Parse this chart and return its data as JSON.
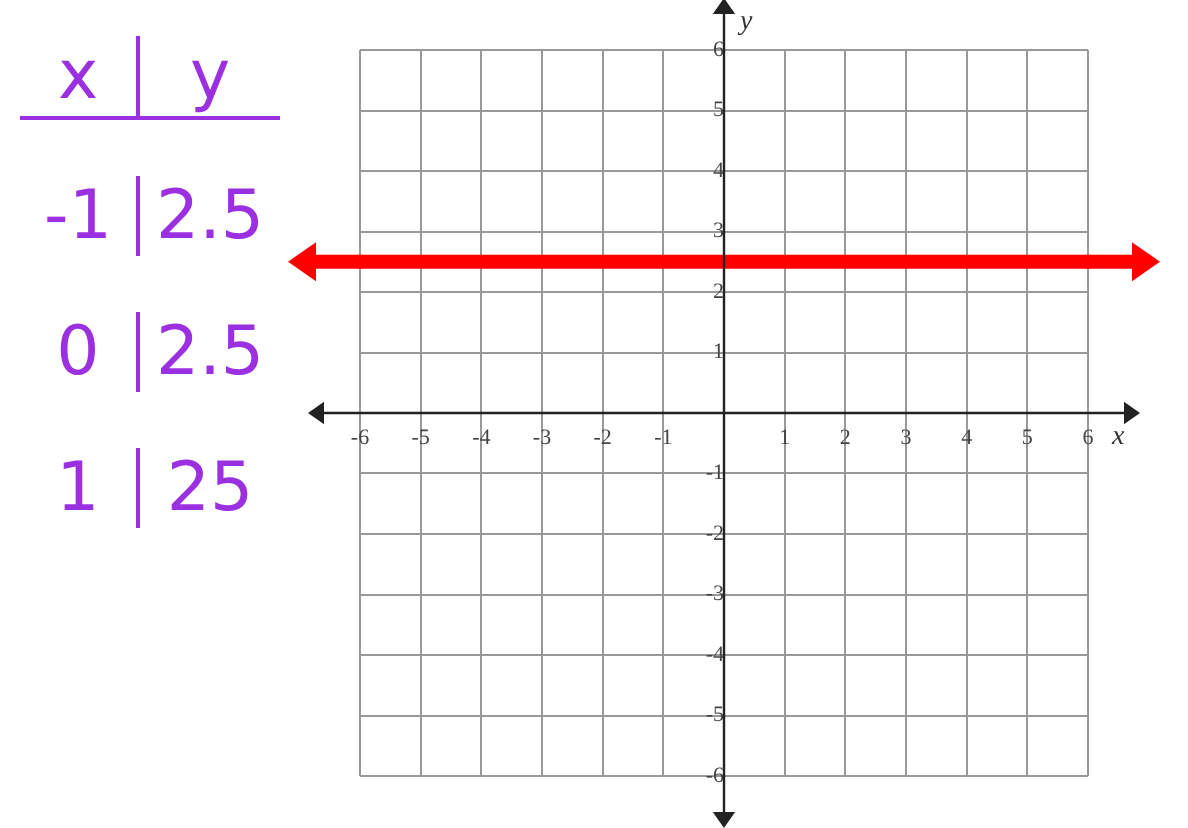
{
  "chart_data": {
    "type": "line",
    "xlabel": "x",
    "ylabel": "y",
    "x": [
      -6,
      6
    ],
    "series": [
      {
        "color": "#ff0000",
        "values": [
          2.5,
          2.5
        ]
      }
    ],
    "xlim": [
      -6,
      6
    ],
    "ylim": [
      -6,
      6
    ],
    "xticks": [
      -6,
      -5,
      -4,
      -3,
      -2,
      -1,
      {
        "value": 0,
        "label": null
      },
      1,
      2,
      3,
      4,
      5,
      6
    ],
    "yticks": [
      -6,
      -5,
      -4,
      -3,
      -2,
      -1,
      {
        "value": 0,
        "label": null
      },
      1,
      2,
      3,
      4,
      5,
      6
    ],
    "grid": true,
    "marker": "none",
    "legend": false,
    "annotations": [
      "x",
      "y",
      "-1",
      "2.5",
      "0",
      "2.5",
      "1",
      "25"
    ]
  }
}
